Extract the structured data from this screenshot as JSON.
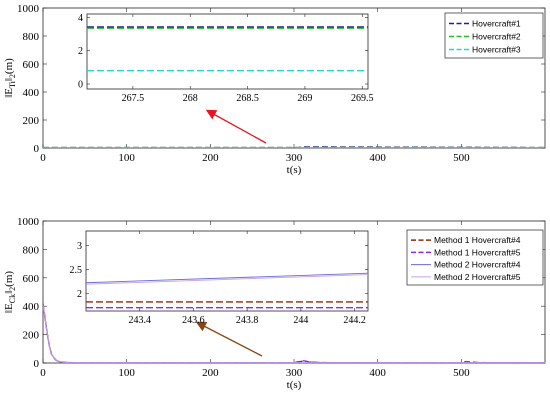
{
  "chart_data": [
    {
      "type": "line",
      "xlabel": "t(s)",
      "ylabel": "‖E_Ti‖₂(m)",
      "xlim": [
        0,
        600
      ],
      "ylim": [
        0,
        1000
      ],
      "xticks": [
        "0",
        "100",
        "200",
        "300",
        "400",
        "500"
      ],
      "yticks": [
        "0",
        "200",
        "400",
        "600",
        "800",
        "1000"
      ],
      "grid": false,
      "legend_position": "top-right",
      "series": [
        {
          "name": "Hovercraft#1",
          "color": "#1f1f8f",
          "style": "dashed",
          "x": [
            0,
            305,
            310,
            600
          ],
          "y": [
            3.4,
            3.4,
            8,
            3.4
          ]
        },
        {
          "name": "Hovercraft#2",
          "color": "#1fbf1f",
          "style": "dashed",
          "x": [
            0,
            600
          ],
          "y": [
            3.3,
            3.3
          ]
        },
        {
          "name": "Hovercraft#3",
          "color": "#22d4d4",
          "style": "dashed",
          "x": [
            0,
            600
          ],
          "y": [
            0.8,
            0.8
          ]
        }
      ],
      "inset": {
        "xlim": [
          267.1,
          269.55
        ],
        "ylim": [
          -0.3,
          4.2
        ],
        "xticks": [
          "267.5",
          "268",
          "268.5",
          "269",
          "269.5"
        ],
        "yticks": [
          "0",
          "2",
          "4"
        ],
        "series": [
          {
            "name": "Hovercraft#1",
            "x": [
              267.1,
              269.55
            ],
            "y": [
              3.42,
              3.42
            ]
          },
          {
            "name": "Hovercraft#2",
            "x": [
              267.1,
              269.55
            ],
            "y": [
              3.35,
              3.35
            ]
          },
          {
            "name": "Hovercraft#3",
            "x": [
              267.1,
              269.55
            ],
            "y": [
              0.8,
              0.8
            ]
          }
        ]
      },
      "arrow_color": "#e8141e"
    },
    {
      "type": "line",
      "xlabel": "t(s)",
      "ylabel": "‖E_Ck‖₂(m)",
      "xlim": [
        0,
        600
      ],
      "ylim": [
        0,
        1000
      ],
      "xticks": [
        "0",
        "100",
        "200",
        "300",
        "400",
        "500"
      ],
      "yticks": [
        "0",
        "200",
        "400",
        "600",
        "800",
        "1000"
      ],
      "grid": false,
      "legend_position": "top-right",
      "series": [
        {
          "name": "Method 1 Hovercraft#4",
          "color": "#8b2a0a",
          "style": "dashed",
          "x": [
            0,
            2,
            4,
            6,
            8,
            10,
            13,
            16,
            20,
            25,
            30,
            40,
            60,
            100,
            200,
            300,
            305,
            312,
            318,
            330,
            400,
            500,
            600
          ],
          "y": [
            400,
            330,
            250,
            170,
            110,
            65,
            35,
            18,
            9,
            5,
            3,
            2,
            2,
            2,
            2,
            2,
            8,
            14,
            7,
            3,
            2,
            2,
            2
          ]
        },
        {
          "name": "Method 1 Hovercraft#5",
          "color": "#8a2be2",
          "style": "dashed",
          "x": [
            0,
            2,
            4,
            6,
            8,
            10,
            13,
            16,
            20,
            25,
            30,
            40,
            60,
            100,
            200,
            300,
            305,
            312,
            318,
            330,
            400,
            500,
            505,
            512,
            520,
            600
          ],
          "y": [
            420,
            340,
            255,
            175,
            112,
            68,
            36,
            18,
            9,
            5,
            3,
            2,
            2,
            2,
            2,
            2,
            10,
            16,
            8,
            3,
            2,
            2,
            10,
            8,
            3,
            2
          ]
        },
        {
          "name": "Method 2 Hovercraft#4",
          "color": "#6a6ad8",
          "style": "solid",
          "x": [
            0,
            2,
            4,
            6,
            8,
            10,
            13,
            16,
            20,
            25,
            30,
            40,
            60,
            100,
            200,
            300,
            600
          ],
          "y": [
            410,
            335,
            252,
            172,
            111,
            66,
            35,
            18,
            9,
            5,
            3,
            2.2,
            2.2,
            2.2,
            2.2,
            2.2,
            2.3
          ]
        },
        {
          "name": "Method 2 Hovercraft#5",
          "color": "#c79fe6",
          "style": "solid",
          "x": [
            0,
            2,
            4,
            6,
            8,
            10,
            13,
            16,
            20,
            25,
            30,
            40,
            60,
            100,
            200,
            300,
            600
          ],
          "y": [
            405,
            332,
            250,
            171,
            110,
            66,
            35,
            18,
            9,
            5,
            3,
            2.2,
            2.2,
            2.2,
            2.2,
            2.2,
            2.3
          ]
        }
      ],
      "inset": {
        "xlim": [
          243.2,
          244.25
        ],
        "ylim": [
          1.63,
          3.3
        ],
        "xticks": [
          "243.4",
          "243.6",
          "243.8",
          "244",
          "244.2"
        ],
        "yticks": [
          "2",
          "2.5",
          "3"
        ],
        "series": [
          {
            "name": "Method 1 Hovercraft#4",
            "x": [
              243.2,
              244.25
            ],
            "y": [
              1.82,
              1.82
            ]
          },
          {
            "name": "Method 1 Hovercraft#5",
            "x": [
              243.2,
              244.25
            ],
            "y": [
              1.7,
              1.7
            ]
          },
          {
            "name": "Method 2 Hovercraft#4",
            "x": [
              243.2,
              244.25
            ],
            "y": [
              2.22,
              2.42
            ]
          },
          {
            "name": "Method 2 Hovercraft#5",
            "x": [
              243.2,
              244.25
            ],
            "y": [
              2.19,
              2.39
            ]
          }
        ]
      },
      "arrow_color": "#8b4513"
    }
  ]
}
